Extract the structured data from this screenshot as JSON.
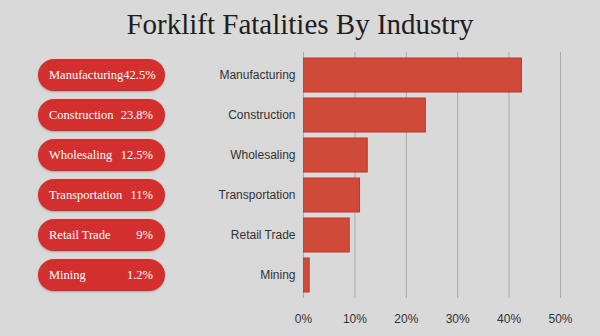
{
  "chart_data": {
    "type": "bar",
    "title": "Forklift Fatalities By Industry",
    "orientation": "horizontal",
    "categories": [
      "Manufacturing",
      "Construction",
      "Wholesaling",
      "Transportation",
      "Retail Trade",
      "Mining"
    ],
    "values": [
      42.5,
      23.8,
      12.5,
      11,
      9,
      1.2
    ],
    "value_labels": [
      "42.5%",
      "23.8%",
      "12.5%",
      "11%",
      "9%",
      "1.2%"
    ],
    "data_labels": true,
    "color": "#d04a3a",
    "xlim": [
      0,
      50
    ],
    "xticks": [
      {
        "value": 0,
        "label": "0%"
      },
      {
        "value": 10,
        "label": "10%"
      },
      {
        "value": 20,
        "label": "20%"
      },
      {
        "value": 30,
        "label": "30%"
      },
      {
        "value": 40,
        "label": "40%"
      },
      {
        "value": 50,
        "label": "50%"
      }
    ],
    "grid": true
  }
}
